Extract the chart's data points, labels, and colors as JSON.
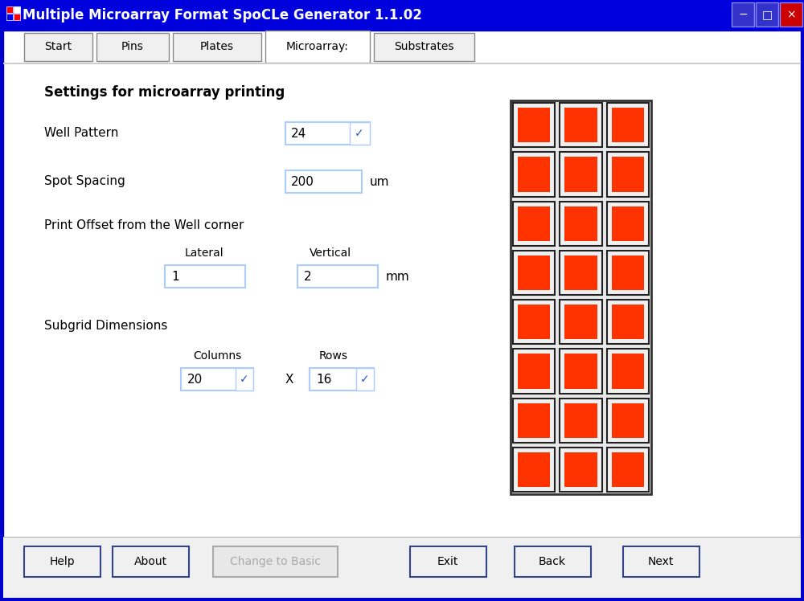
{
  "title": "Multiple Microarray Format SpoCLe Generator 1.1.02",
  "title_bar_color": "#0000dd",
  "title_text_color": "#ffffff",
  "window_bg": "#ffffff",
  "tab_bar_bg": "#f0f0f0",
  "content_bg": "#ffffff",
  "border_color": "#0000cc",
  "tabs": [
    "Start",
    "Pins",
    "Plates",
    "Microarray:",
    "Substrates"
  ],
  "active_tab": 3,
  "section_title": "Settings for microarray printing",
  "buttons": [
    "Help",
    "About",
    "Change to Basic",
    "Exit",
    "Back",
    "Next"
  ],
  "button_disabled": [
    false,
    false,
    true,
    false,
    false,
    false
  ],
  "grid_rows": 8,
  "grid_cols": 3,
  "spot_color": "#ff3300",
  "cell_bg": "#f0f0f0",
  "cell_border": "#222222",
  "outer_border": "#333333",
  "outer_bg": "#e8e8e8",
  "input_border": "#aaccff",
  "dd_arrow_color": "#2255cc"
}
